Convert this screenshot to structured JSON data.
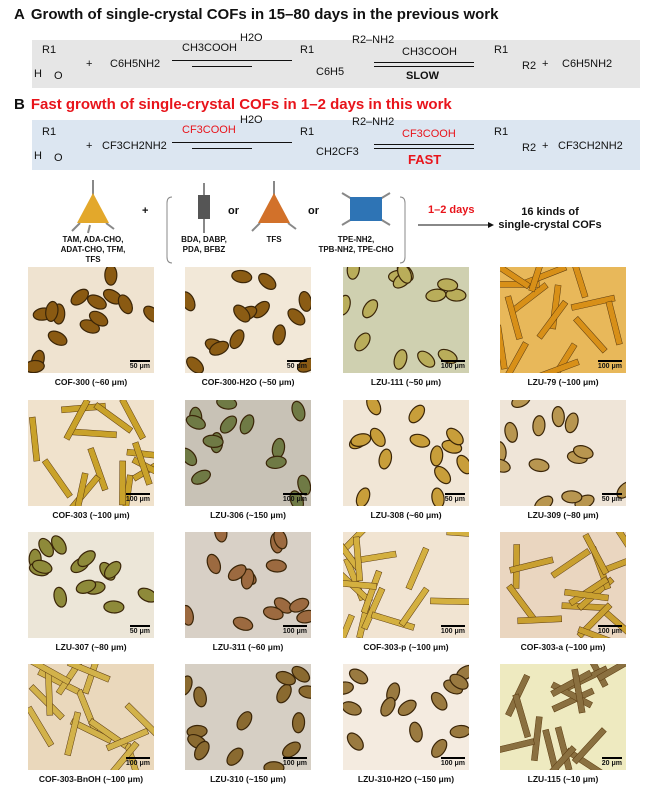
{
  "panel_a": {
    "letter": "A",
    "title": "Growth of single-crystal COFs in 15–80 days in the previous work",
    "aldehyde_r": "R1",
    "aldehyde_h": "H",
    "aldehyde_o": "O",
    "plus": "+",
    "amine": "C6H5NH2",
    "catalyst": "CH3COOH",
    "water": "H2O",
    "imine_sub": "C6H5",
    "r2_amine": "R2–NH2",
    "catalyst2": "CH3COOH",
    "speed": "SLOW",
    "product_r2": "R2",
    "byproduct": "C6H5NH2",
    "background": "#e6e6e6"
  },
  "panel_b": {
    "letter": "B",
    "title": "Fast growth of single-crystal COFs in 1–2 days in this work",
    "amine": "CF3CH2NH2",
    "catalyst": "CF3COOH",
    "water": "H2O",
    "imine_sub": "CH2CF3",
    "r2_amine": "R2–NH2",
    "catalyst2": "CF3COOH",
    "speed": "FAST",
    "product_r2": "R2",
    "byproduct": "CF3CH2NH2",
    "background": "#dce6f1",
    "accent": "#e8141b",
    "building_blocks": [
      {
        "shape": "tetrahedron",
        "color": "#e3a82b",
        "label": "TAM, ADA-CHO,\nADAT-CHO, TFM, TFS"
      },
      {
        "shape": "linear",
        "color": "#555555",
        "label": "BDA, DABP,\nPDA, BFBZ"
      },
      {
        "shape": "tetrahedron",
        "color": "#d2712a",
        "label": "TFS"
      },
      {
        "shape": "square",
        "color": "#2e74b5",
        "label": "TPE-NH2,\nTPB-NH2, TPE-CHO"
      }
    ],
    "or": "or",
    "time": "1–2 days",
    "result": "16 kinds of\nsingle-crystal COFs"
  },
  "micrographs": [
    {
      "name": "COF-300 (~60 μm)",
      "scale": "50 μm",
      "bg": "#efe3d0",
      "crystal": "#8a5a12"
    },
    {
      "name": "COF-300-H2O (~50 μm)",
      "scale": "50 μm",
      "bg": "#f2e8d8",
      "crystal": "#8b5c14"
    },
    {
      "name": "LZU-111 (~50 μm)",
      "scale": "100 μm",
      "bg": "#cfd0b0",
      "crystal": "#b9ad5a"
    },
    {
      "name": "LZU-79 (~100 μm)",
      "scale": "100 μm",
      "bg": "#e8b85a",
      "crystal": "#d89018"
    },
    {
      "name": "COF-303 (~100 μm)",
      "scale": "100 μm",
      "bg": "#f0e2cc",
      "crystal": "#c9a22a"
    },
    {
      "name": "LZU-306 (~150 μm)",
      "scale": "100 μm",
      "bg": "#c8c2b6",
      "crystal": "#6f7a45"
    },
    {
      "name": "LZU-308 (~60 μm)",
      "scale": "50 μm",
      "bg": "#f1e6d6",
      "crystal": "#c89e3a"
    },
    {
      "name": "LZU-309 (~80 μm)",
      "scale": "50 μm",
      "bg": "#efe5d8",
      "crystal": "#b89650"
    },
    {
      "name": "LZU-307 (~80 μm)",
      "scale": "50 μm",
      "bg": "#ece6d8",
      "crystal": "#8e8a3a"
    },
    {
      "name": "LZU-311 (~60 μm)",
      "scale": "100 μm",
      "bg": "#d8d0c6",
      "crystal": "#9c6a40"
    },
    {
      "name": "COF-303-p (~100 μm)",
      "scale": "100 μm",
      "bg": "#f1e4d2",
      "crystal": "#d4b040"
    },
    {
      "name": "COF-303-a (~100 μm)",
      "scale": "100 μm",
      "bg": "#ead6c0",
      "crystal": "#c9a030"
    },
    {
      "name": "COF-303-BnOH (~100 μm)",
      "scale": "100 μm",
      "bg": "#ead8bc",
      "crystal": "#d2b24a"
    },
    {
      "name": "LZU-310 (~150 μm)",
      "scale": "100 μm",
      "bg": "#d6cfc4",
      "crystal": "#8a6a30"
    },
    {
      "name": "LZU-310-H2O (~150 μm)",
      "scale": "100 μm",
      "bg": "#f4ebe0",
      "crystal": "#9a7a40"
    },
    {
      "name": "LZU-115 (~10 μm)",
      "scale": "20 μm",
      "bg": "#eeeac0",
      "crystal": "#8a7040"
    }
  ]
}
